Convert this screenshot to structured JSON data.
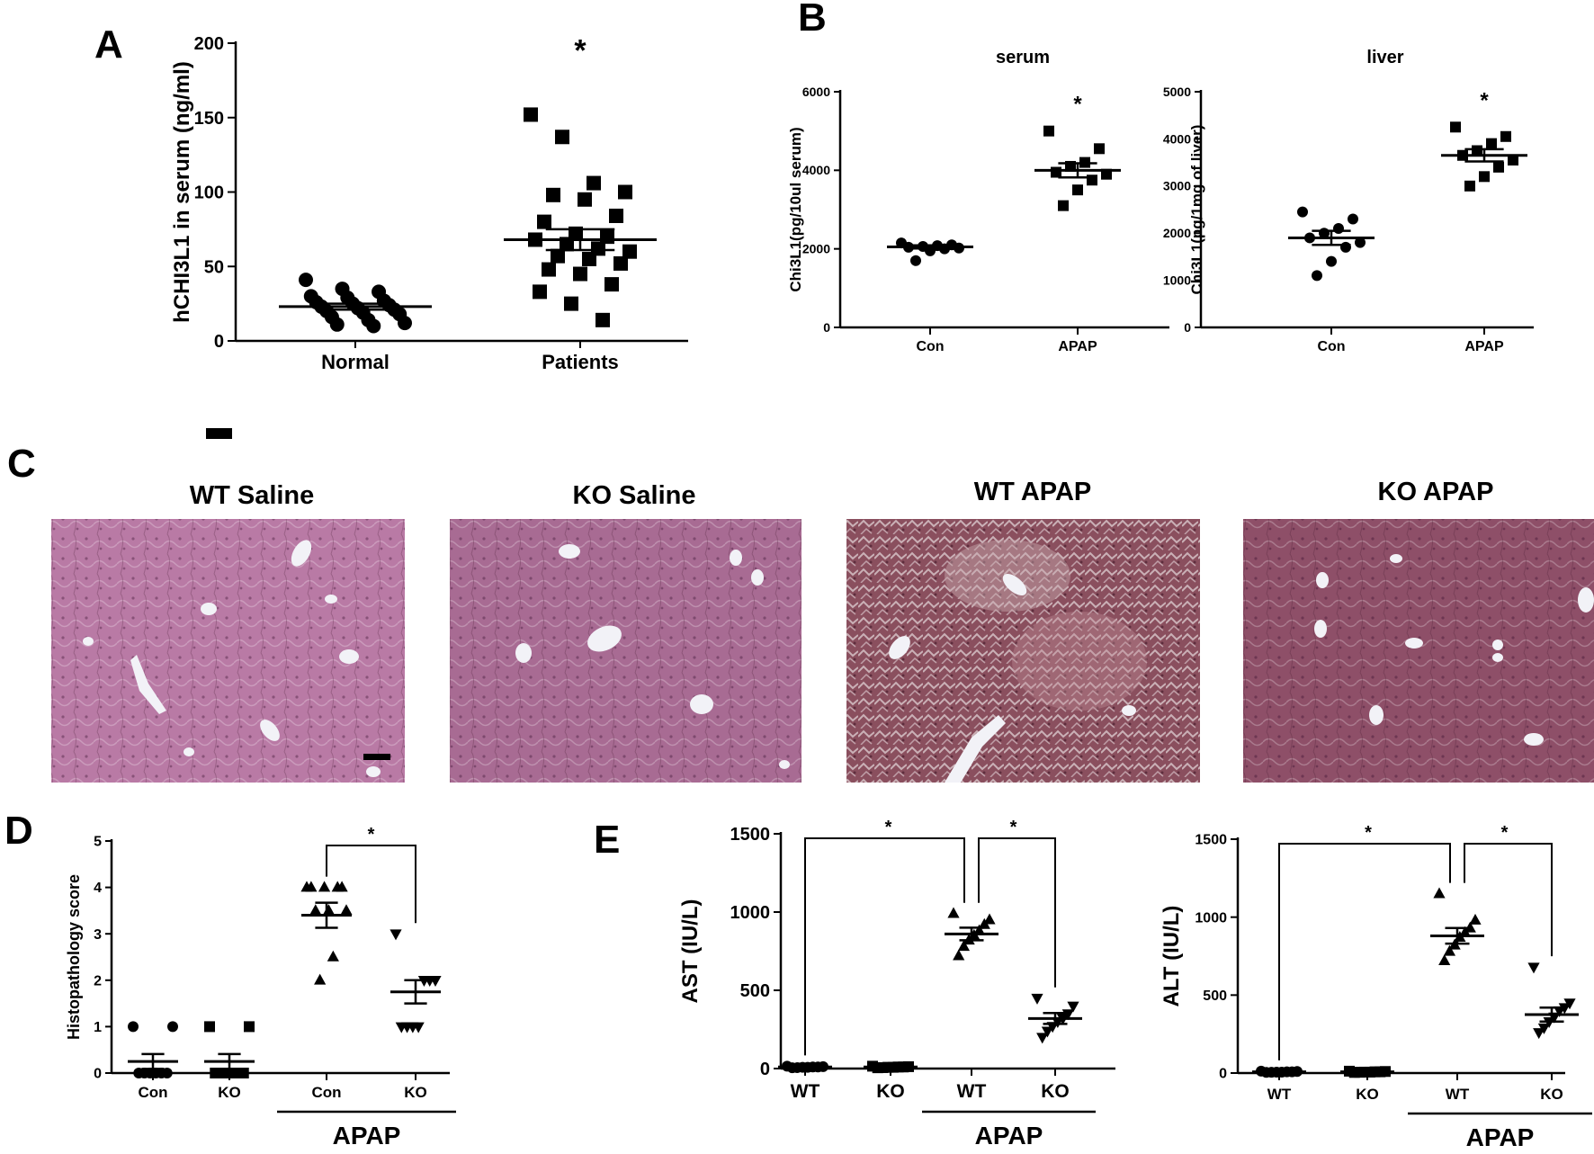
{
  "panels": {
    "A": {
      "letter": "A",
      "ylabel": "hCHI3L1 in serum (ng/ml)",
      "star": "*"
    },
    "B": {
      "letter": "B"
    },
    "C": {
      "letter": "C",
      "images": [
        {
          "label": "WT Saline",
          "tint": "#b97aa5"
        },
        {
          "label": "KO Saline",
          "tint": "#a86b93"
        },
        {
          "label": "WT APAP",
          "tint": "#8a4f5e"
        },
        {
          "label": "KO APAP",
          "tint": "#8e4f68"
        }
      ]
    },
    "D": {
      "letter": "D",
      "ylabel": "Histopathology score",
      "star": "*",
      "group_label": "APAP"
    },
    "E": {
      "letter": "E",
      "star": "*",
      "group_label": "APAP"
    }
  },
  "chart_data": [
    {
      "id": "A",
      "type": "scatter",
      "title": "",
      "xlabel": "",
      "ylabel": "hCHI3L1 in serum (ng/ml)",
      "ylim": [
        0,
        200
      ],
      "yticks": [
        0,
        50,
        100,
        150,
        200
      ],
      "categories": [
        "Normal",
        "Patients"
      ],
      "series": [
        {
          "category": "Normal",
          "marker": "circle",
          "values": [
            41,
            35,
            33,
            30,
            29,
            27,
            26,
            25,
            24,
            23,
            22,
            21,
            20,
            19,
            18,
            16,
            14,
            12,
            11,
            10
          ],
          "mean": 23,
          "sem": 2
        },
        {
          "category": "Patients",
          "marker": "square",
          "values": [
            152,
            137,
            106,
            100,
            98,
            95,
            84,
            80,
            72,
            70,
            68,
            65,
            62,
            60,
            57,
            55,
            52,
            48,
            45,
            38,
            33,
            25,
            14
          ],
          "mean": 68,
          "sem": 7
        }
      ],
      "annotations": [
        {
          "text": "*",
          "over": "Patients"
        }
      ]
    },
    {
      "id": "B-serum",
      "type": "scatter",
      "title": "serum",
      "ylabel": "Chi3L1(pg/10ul serum)",
      "ylim": [
        0,
        6000
      ],
      "yticks": [
        0,
        2000,
        4000,
        6000
      ],
      "categories": [
        "Con",
        "APAP"
      ],
      "series": [
        {
          "category": "Con",
          "marker": "circle",
          "values": [
            2150,
            2100,
            2080,
            2060,
            2040,
            2020,
            2000,
            1950,
            1700
          ],
          "mean": 2050,
          "sem": 40
        },
        {
          "category": "APAP",
          "marker": "square",
          "values": [
            5000,
            4550,
            4200,
            4100,
            3950,
            3900,
            3750,
            3500,
            3100
          ],
          "mean": 4000,
          "sem": 180
        }
      ],
      "annotations": [
        {
          "text": "*",
          "over": "APAP"
        }
      ]
    },
    {
      "id": "B-liver",
      "type": "scatter",
      "title": "liver",
      "ylabel": "Chi3L1(pg/1mg of liver)",
      "ylim": [
        0,
        5000
      ],
      "yticks": [
        0,
        1000,
        2000,
        3000,
        4000,
        5000
      ],
      "categories": [
        "Con",
        "APAP"
      ],
      "series": [
        {
          "category": "Con",
          "marker": "circle",
          "values": [
            2450,
            2300,
            2100,
            2000,
            1900,
            1800,
            1700,
            1400,
            1100
          ],
          "mean": 1900,
          "sem": 150
        },
        {
          "category": "APAP",
          "marker": "square",
          "values": [
            4250,
            4050,
            3900,
            3750,
            3650,
            3550,
            3400,
            3200,
            3000
          ],
          "mean": 3650,
          "sem": 130
        }
      ],
      "annotations": [
        {
          "text": "*",
          "over": "APAP"
        }
      ]
    },
    {
      "id": "D",
      "type": "scatter",
      "ylabel": "Histopathology score",
      "ylim": [
        0,
        5
      ],
      "yticks": [
        0,
        1,
        2,
        3,
        4,
        5
      ],
      "categories": [
        "Con",
        "KO",
        "Con",
        "KO"
      ],
      "group_bracket": {
        "label": "APAP",
        "covers": [
          2,
          3
        ]
      },
      "series": [
        {
          "category": "Con",
          "marker": "circle",
          "values": [
            1,
            1,
            0,
            0,
            0,
            0,
            0,
            0
          ],
          "mean": 0.25,
          "sem": 0.16
        },
        {
          "category": "KO",
          "marker": "square",
          "values": [
            1,
            1,
            0,
            0,
            0,
            0,
            0,
            0
          ],
          "mean": 0.25,
          "sem": 0.16
        },
        {
          "category": "Con",
          "marker": "triangle-up",
          "values": [
            4,
            4,
            4,
            4,
            4,
            3.5,
            3.5,
            3.5,
            2.5,
            2
          ],
          "mean": 3.4,
          "sem": 0.27
        },
        {
          "category": "KO",
          "marker": "triangle-down",
          "values": [
            3,
            2,
            2,
            2,
            1,
            1,
            1,
            1
          ],
          "mean": 1.75,
          "sem": 0.25
        }
      ],
      "significance": [
        {
          "from": 2,
          "to": 3,
          "text": "*"
        }
      ]
    },
    {
      "id": "E-AST",
      "type": "scatter",
      "ylabel": "AST (IU/L)",
      "ylim": [
        0,
        1500
      ],
      "yticks": [
        0,
        500,
        1000,
        1500
      ],
      "categories": [
        "WT",
        "KO",
        "WT",
        "KO"
      ],
      "group_bracket": {
        "label": "APAP",
        "covers": [
          2,
          3
        ]
      },
      "series": [
        {
          "category": "WT",
          "marker": "circle",
          "values": [
            15,
            12,
            10,
            10,
            8,
            8,
            6,
            5
          ],
          "mean": 10,
          "sem": 2
        },
        {
          "category": "KO",
          "marker": "square",
          "values": [
            15,
            12,
            10,
            10,
            8,
            8,
            6,
            5
          ],
          "mean": 10,
          "sem": 2
        },
        {
          "category": "WT",
          "marker": "triangle-up",
          "values": [
            990,
            950,
            920,
            880,
            850,
            820,
            780,
            720
          ],
          "mean": 860,
          "sem": 40
        },
        {
          "category": "KO",
          "marker": "triangle-down",
          "values": [
            450,
            400,
            350,
            320,
            300,
            270,
            240,
            200
          ],
          "mean": 320,
          "sem": 35
        }
      ],
      "significance": [
        {
          "from": 0,
          "to": 2,
          "text": "*"
        },
        {
          "from": 2,
          "to": 3,
          "text": "*"
        }
      ]
    },
    {
      "id": "E-ALT",
      "type": "scatter",
      "ylabel": "ALT (IU/L)",
      "ylim": [
        0,
        1500
      ],
      "yticks": [
        0,
        500,
        1000,
        1500
      ],
      "categories": [
        "WT",
        "KO",
        "WT",
        "KO"
      ],
      "group_bracket": {
        "label": "APAP",
        "covers": [
          2,
          3
        ]
      },
      "series": [
        {
          "category": "WT",
          "marker": "circle",
          "values": [
            12,
            10,
            8,
            8,
            6,
            6,
            5,
            4
          ],
          "mean": 8,
          "sem": 1.5
        },
        {
          "category": "KO",
          "marker": "square",
          "values": [
            12,
            10,
            8,
            8,
            6,
            6,
            5,
            4
          ],
          "mean": 8,
          "sem": 1.5
        },
        {
          "category": "WT",
          "marker": "triangle-up",
          "values": [
            1150,
            980,
            930,
            900,
            870,
            820,
            780,
            720
          ],
          "mean": 880,
          "sem": 50
        },
        {
          "category": "KO",
          "marker": "triangle-down",
          "values": [
            680,
            450,
            420,
            400,
            360,
            330,
            290,
            260
          ],
          "mean": 375,
          "sem": 45
        }
      ],
      "significance": [
        {
          "from": 0,
          "to": 2,
          "text": "*"
        },
        {
          "from": 2,
          "to": 3,
          "text": "*"
        }
      ]
    }
  ]
}
